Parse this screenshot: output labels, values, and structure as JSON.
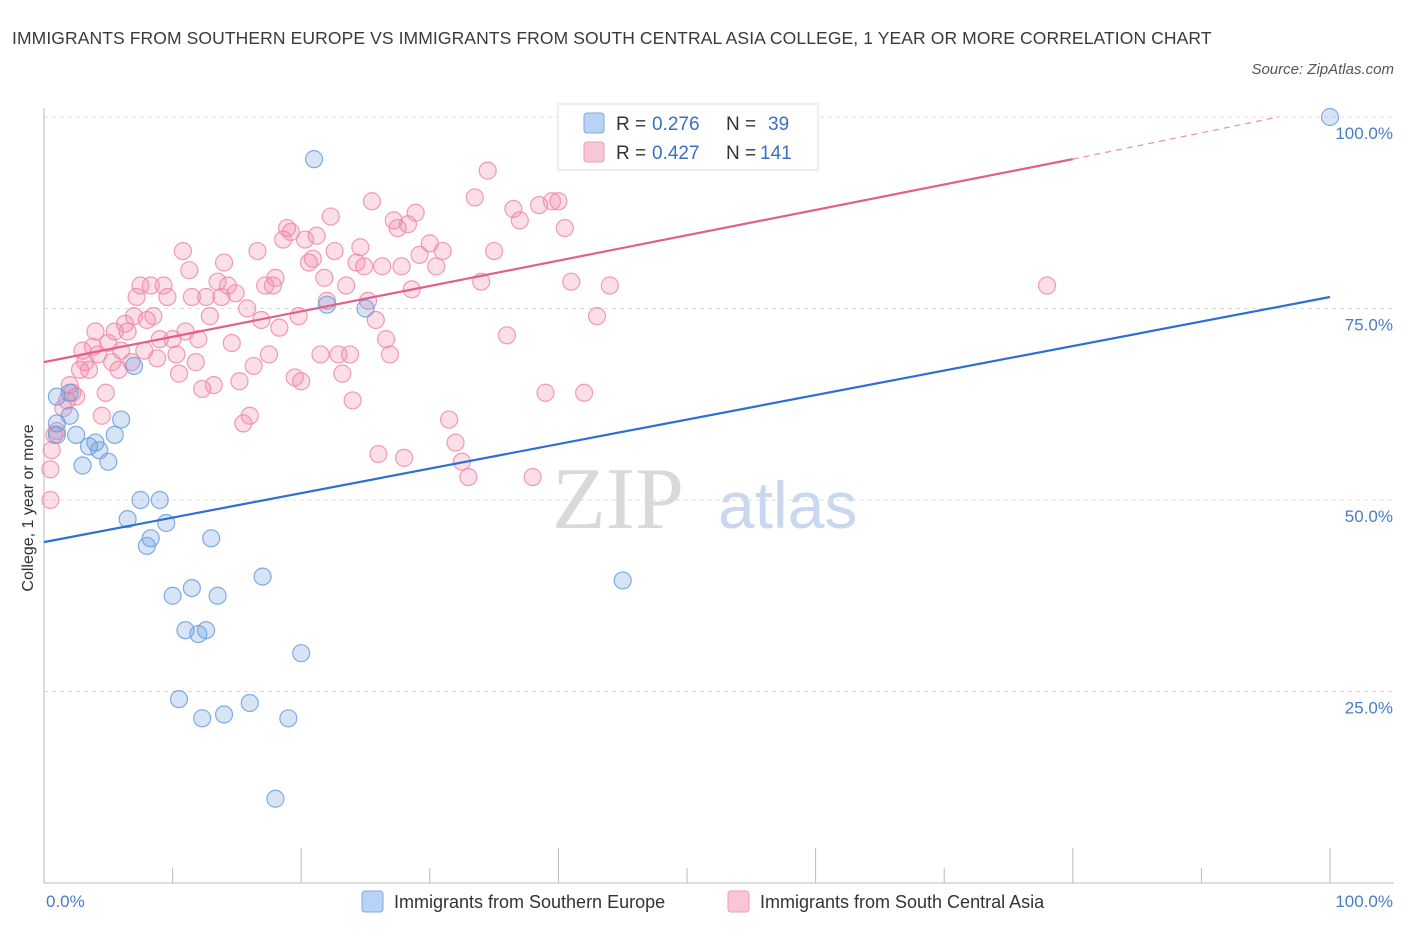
{
  "title": "IMMIGRANTS FROM SOUTHERN EUROPE VS IMMIGRANTS FROM SOUTH CENTRAL ASIA COLLEGE, 1 YEAR OR MORE CORRELATION CHART",
  "source": "Source: ZipAtlas.com",
  "watermark": {
    "zip": "ZIP",
    "atlas": "atlas"
  },
  "chart_data": {
    "type": "scatter",
    "xlabel": "",
    "ylabel": "College, 1 year or more",
    "xlim": [
      0,
      100
    ],
    "ylim": [
      0,
      100
    ],
    "x_tick_labels": [
      "0.0%",
      "100.0%"
    ],
    "y_ticks": [
      {
        "value": 25,
        "label": "25.0%"
      },
      {
        "value": 50,
        "label": "50.0%"
      },
      {
        "value": 75,
        "label": "75.0%"
      },
      {
        "value": 100,
        "label": "100.0%"
      }
    ],
    "grid": "horizontal dashed",
    "legend_position": "top-center",
    "series": [
      {
        "name": "Immigrants from Southern Europe",
        "color": "#6a9fe0",
        "line_color": "#2f6fcf",
        "R": "0.276",
        "N": "39",
        "trend": {
          "x0": 0,
          "y0": 44.5,
          "x1": 100,
          "y1": 76.5,
          "dashed_from": null
        },
        "points": [
          [
            1,
            63.5
          ],
          [
            1,
            60
          ],
          [
            1,
            58.5
          ],
          [
            2,
            64
          ],
          [
            2,
            61
          ],
          [
            2.5,
            58.5
          ],
          [
            3,
            54.5
          ],
          [
            3.5,
            57
          ],
          [
            4,
            57.5
          ],
          [
            4.3,
            56.5
          ],
          [
            5,
            55
          ],
          [
            5.5,
            58.5
          ],
          [
            6,
            60.5
          ],
          [
            6.5,
            47.5
          ],
          [
            7,
            67.5
          ],
          [
            7.5,
            50
          ],
          [
            8,
            44
          ],
          [
            8.3,
            45
          ],
          [
            9,
            50
          ],
          [
            9.5,
            47
          ],
          [
            10,
            37.5
          ],
          [
            10.5,
            24
          ],
          [
            11,
            33
          ],
          [
            11.5,
            38.5
          ],
          [
            12,
            32.5
          ],
          [
            12.3,
            21.5
          ],
          [
            12.6,
            33
          ],
          [
            13,
            45
          ],
          [
            13.5,
            37.5
          ],
          [
            14,
            22
          ],
          [
            16,
            23.5
          ],
          [
            17,
            40
          ],
          [
            18,
            11
          ],
          [
            19,
            21.5
          ],
          [
            20,
            30
          ],
          [
            21,
            94.5
          ],
          [
            22,
            75.5
          ],
          [
            25,
            75
          ],
          [
            45,
            39.5
          ],
          [
            100,
            100
          ]
        ]
      },
      {
        "name": "Immigrants from South Central Asia",
        "color": "#f08aa8",
        "line_color": "#e0608a",
        "R": "0.427",
        "N": "141",
        "trend": {
          "x0": 0,
          "y0": 68,
          "x1": 80,
          "y1": 94.5,
          "dashed_from": 80,
          "dashed_to": [
            96,
            100
          ]
        },
        "points": [
          [
            0.5,
            50
          ],
          [
            0.5,
            54
          ],
          [
            0.6,
            56.5
          ],
          [
            0.8,
            58.5
          ],
          [
            1,
            59
          ],
          [
            1.5,
            62
          ],
          [
            1.8,
            63
          ],
          [
            2,
            65
          ],
          [
            2.2,
            64
          ],
          [
            2.5,
            63.5
          ],
          [
            2.8,
            67
          ],
          [
            3,
            69.5
          ],
          [
            3.2,
            68
          ],
          [
            3.5,
            67
          ],
          [
            3.8,
            70
          ],
          [
            4,
            72
          ],
          [
            4.2,
            69
          ],
          [
            4.5,
            61
          ],
          [
            4.8,
            64
          ],
          [
            5,
            70.5
          ],
          [
            5.3,
            68
          ],
          [
            5.5,
            72
          ],
          [
            5.8,
            67
          ],
          [
            6,
            69.5
          ],
          [
            6.3,
            73
          ],
          [
            6.5,
            72
          ],
          [
            6.8,
            68
          ],
          [
            7,
            74
          ],
          [
            7.2,
            76.5
          ],
          [
            7.5,
            78
          ],
          [
            7.8,
            69.5
          ],
          [
            8,
            73.5
          ],
          [
            8.3,
            78
          ],
          [
            8.5,
            74
          ],
          [
            8.8,
            68.5
          ],
          [
            9,
            71
          ],
          [
            9.3,
            78
          ],
          [
            9.6,
            76.5
          ],
          [
            10,
            71
          ],
          [
            10.3,
            69
          ],
          [
            10.5,
            66.5
          ],
          [
            10.8,
            82.5
          ],
          [
            11,
            72
          ],
          [
            11.3,
            80
          ],
          [
            11.5,
            76.5
          ],
          [
            11.8,
            68
          ],
          [
            12,
            71
          ],
          [
            12.3,
            64.5
          ],
          [
            12.6,
            76.5
          ],
          [
            12.9,
            74
          ],
          [
            13.2,
            65
          ],
          [
            13.5,
            78.5
          ],
          [
            13.8,
            76.5
          ],
          [
            14,
            81
          ],
          [
            14.3,
            78
          ],
          [
            14.6,
            70.5
          ],
          [
            14.9,
            77
          ],
          [
            15.2,
            65.5
          ],
          [
            15.5,
            60
          ],
          [
            15.8,
            75
          ],
          [
            16,
            61
          ],
          [
            16.3,
            67.5
          ],
          [
            16.6,
            82.5
          ],
          [
            16.9,
            73.5
          ],
          [
            17.2,
            78
          ],
          [
            17.5,
            69
          ],
          [
            17.8,
            78
          ],
          [
            18,
            79
          ],
          [
            18.3,
            72.5
          ],
          [
            18.6,
            84
          ],
          [
            18.9,
            85.5
          ],
          [
            19.2,
            85
          ],
          [
            19.5,
            66
          ],
          [
            19.8,
            74
          ],
          [
            20,
            65.5
          ],
          [
            20.3,
            84
          ],
          [
            20.6,
            81
          ],
          [
            20.9,
            81.5
          ],
          [
            21.2,
            84.5
          ],
          [
            21.5,
            69
          ],
          [
            21.8,
            79
          ],
          [
            22,
            76
          ],
          [
            22.3,
            87
          ],
          [
            22.6,
            82.5
          ],
          [
            22.9,
            69
          ],
          [
            23.2,
            66.5
          ],
          [
            23.5,
            78
          ],
          [
            23.8,
            69
          ],
          [
            24,
            63
          ],
          [
            24.3,
            81
          ],
          [
            24.6,
            83
          ],
          [
            24.9,
            80.5
          ],
          [
            25.2,
            76
          ],
          [
            25.5,
            89
          ],
          [
            25.8,
            73.5
          ],
          [
            26,
            56
          ],
          [
            26.3,
            80.5
          ],
          [
            26.6,
            71
          ],
          [
            26.9,
            69
          ],
          [
            27.2,
            86.5
          ],
          [
            27.5,
            85.5
          ],
          [
            27.8,
            80.5
          ],
          [
            28,
            55.5
          ],
          [
            28.3,
            86
          ],
          [
            28.6,
            77.5
          ],
          [
            28.9,
            87.5
          ],
          [
            29.2,
            82
          ],
          [
            30,
            83.5
          ],
          [
            30.5,
            80.5
          ],
          [
            31,
            82.5
          ],
          [
            31.5,
            60.5
          ],
          [
            32,
            57.5
          ],
          [
            32.5,
            55
          ],
          [
            33,
            53
          ],
          [
            33.5,
            89.5
          ],
          [
            34,
            78.5
          ],
          [
            34.5,
            93
          ],
          [
            35,
            82.5
          ],
          [
            36,
            71.5
          ],
          [
            36.5,
            88
          ],
          [
            37,
            86.5
          ],
          [
            38,
            53
          ],
          [
            38.5,
            88.5
          ],
          [
            39,
            64
          ],
          [
            39.5,
            89
          ],
          [
            40,
            89
          ],
          [
            40.5,
            85.5
          ],
          [
            41,
            78.5
          ],
          [
            42,
            64
          ],
          [
            43,
            74
          ],
          [
            44,
            78
          ],
          [
            78,
            78
          ]
        ]
      }
    ]
  }
}
